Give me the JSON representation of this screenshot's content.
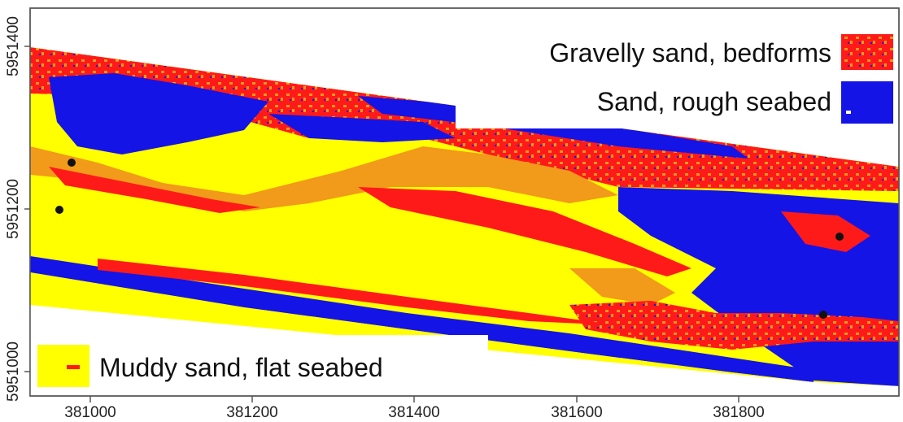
{
  "map": {
    "x_ticks": [
      "381000",
      "381200",
      "381400",
      "381600",
      "381800"
    ],
    "y_ticks": [
      "5951400",
      "5951200",
      "5951000"
    ]
  },
  "legend": {
    "items": [
      {
        "label": "Gravelly sand, bedforms",
        "color": "#ff1a1a",
        "secondary_color": "#f29a1a"
      },
      {
        "label": "Sand, rough seabed",
        "color": "#1414e6"
      },
      {
        "label": "Muddy sand, flat seabed",
        "color": "#ffff00"
      }
    ]
  },
  "colors": {
    "yellow": "#ffff00",
    "blue": "#1414e6",
    "red": "#ff1a1a",
    "orange": "#f29a1a",
    "frame": "#555555",
    "marker": "#111111"
  }
}
